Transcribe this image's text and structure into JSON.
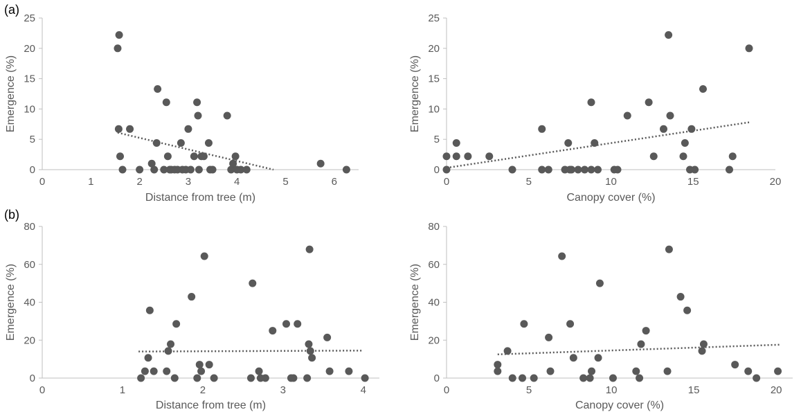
{
  "panel_labels": [
    "(a)",
    "(b)"
  ],
  "colors": {
    "points": "#595959",
    "trend": "#595959",
    "axis": "#bfbfbf",
    "text": "#595959"
  },
  "chart_data": [
    {
      "panel": "(a)",
      "type": "scatter",
      "xlabel": "Distance from tree (m)",
      "ylabel": "Emergence (%)",
      "xlim": [
        0,
        6.5
      ],
      "ylim": [
        0,
        25
      ],
      "xticks": [
        0,
        1,
        2,
        3,
        4,
        5,
        6
      ],
      "yticks": [
        0,
        5,
        10,
        15,
        20,
        25
      ],
      "grid": false,
      "trendline": {
        "style": "dotted",
        "x": [
          1.55,
          4.75
        ],
        "y": [
          6.1,
          0.0
        ]
      },
      "points": [
        [
          1.55,
          20.0
        ],
        [
          1.58,
          22.2
        ],
        [
          1.57,
          6.7
        ],
        [
          1.6,
          2.2
        ],
        [
          1.65,
          0.0
        ],
        [
          1.8,
          6.7
        ],
        [
          2.0,
          0.0
        ],
        [
          2.25,
          1.0
        ],
        [
          2.3,
          0.0
        ],
        [
          2.35,
          4.4
        ],
        [
          2.37,
          13.3
        ],
        [
          2.5,
          0.0
        ],
        [
          2.55,
          11.1
        ],
        [
          2.58,
          2.2
        ],
        [
          2.62,
          0.0
        ],
        [
          2.65,
          0.0
        ],
        [
          2.72,
          0.0
        ],
        [
          2.78,
          0.0
        ],
        [
          2.85,
          4.4
        ],
        [
          2.88,
          0.0
        ],
        [
          2.95,
          0.0
        ],
        [
          3.0,
          6.7
        ],
        [
          3.05,
          0.0
        ],
        [
          3.12,
          2.2
        ],
        [
          3.18,
          11.1
        ],
        [
          3.2,
          8.9
        ],
        [
          3.22,
          0.0
        ],
        [
          3.27,
          2.2
        ],
        [
          3.32,
          2.2
        ],
        [
          3.42,
          4.4
        ],
        [
          3.45,
          0.0
        ],
        [
          3.5,
          0.0
        ],
        [
          3.8,
          8.9
        ],
        [
          3.88,
          0.0
        ],
        [
          3.92,
          1.0
        ],
        [
          3.97,
          2.2
        ],
        [
          4.0,
          0.0
        ],
        [
          4.08,
          0.0
        ],
        [
          4.2,
          0.0
        ],
        [
          5.72,
          1.0
        ],
        [
          6.25,
          0.0
        ]
      ]
    },
    {
      "panel": "(a)",
      "type": "scatter",
      "xlabel": "Canopy cover (%)",
      "ylabel": "Emergence (%)",
      "xlim": [
        0,
        20
      ],
      "ylim": [
        0,
        25
      ],
      "xticks": [
        0,
        5,
        10,
        15,
        20
      ],
      "yticks": [
        0,
        5,
        10,
        15,
        20,
        25
      ],
      "grid": false,
      "trendline": {
        "style": "dotted",
        "x": [
          0,
          18.4
        ],
        "y": [
          0.3,
          7.8
        ]
      },
      "points": [
        [
          0.0,
          0.0
        ],
        [
          0.0,
          2.2
        ],
        [
          0.6,
          2.2
        ],
        [
          0.6,
          4.4
        ],
        [
          1.3,
          2.2
        ],
        [
          2.6,
          2.2
        ],
        [
          4.0,
          0.0
        ],
        [
          5.8,
          6.7
        ],
        [
          5.8,
          0.0
        ],
        [
          6.2,
          0.0
        ],
        [
          7.2,
          0.0
        ],
        [
          7.4,
          4.4
        ],
        [
          7.5,
          0.0
        ],
        [
          7.6,
          0.0
        ],
        [
          8.0,
          0.0
        ],
        [
          8.4,
          0.0
        ],
        [
          8.8,
          11.1
        ],
        [
          8.8,
          0.0
        ],
        [
          9.0,
          4.4
        ],
        [
          9.2,
          0.0
        ],
        [
          10.2,
          0.0
        ],
        [
          10.4,
          0.0
        ],
        [
          11.0,
          8.9
        ],
        [
          12.3,
          11.1
        ],
        [
          12.6,
          2.2
        ],
        [
          13.2,
          6.7
        ],
        [
          13.5,
          22.2
        ],
        [
          13.6,
          8.9
        ],
        [
          14.4,
          2.2
        ],
        [
          14.5,
          4.4
        ],
        [
          14.8,
          0.0
        ],
        [
          14.9,
          6.7
        ],
        [
          15.1,
          0.0
        ],
        [
          15.6,
          13.3
        ],
        [
          17.2,
          0.0
        ],
        [
          17.4,
          2.2
        ],
        [
          18.4,
          20.0
        ]
      ]
    },
    {
      "panel": "(b)",
      "type": "scatter",
      "xlabel": "Distance from tree (m)",
      "ylabel": "Emergence (%)",
      "xlim": [
        0,
        4.2
      ],
      "ylim": [
        0,
        80
      ],
      "xticks": [
        0,
        1,
        2,
        3,
        4
      ],
      "yticks": [
        0,
        20,
        40,
        60,
        80
      ],
      "grid": false,
      "trendline": {
        "style": "dotted",
        "x": [
          1.2,
          4.0
        ],
        "y": [
          14.0,
          14.5
        ]
      },
      "points": [
        [
          1.23,
          0.0
        ],
        [
          1.28,
          3.6
        ],
        [
          1.32,
          10.7
        ],
        [
          1.34,
          35.7
        ],
        [
          1.39,
          3.6
        ],
        [
          1.55,
          3.6
        ],
        [
          1.57,
          14.3
        ],
        [
          1.6,
          17.9
        ],
        [
          1.65,
          0.0
        ],
        [
          1.67,
          28.6
        ],
        [
          1.86,
          42.9
        ],
        [
          1.93,
          0.0
        ],
        [
          1.96,
          7.1
        ],
        [
          1.98,
          3.6
        ],
        [
          2.02,
          64.3
        ],
        [
          2.08,
          7.1
        ],
        [
          2.14,
          0.0
        ],
        [
          2.6,
          0.0
        ],
        [
          2.62,
          50.0
        ],
        [
          2.7,
          3.6
        ],
        [
          2.72,
          0.0
        ],
        [
          2.78,
          0.0
        ],
        [
          2.87,
          25.0
        ],
        [
          3.04,
          28.6
        ],
        [
          3.1,
          0.0
        ],
        [
          3.13,
          0.0
        ],
        [
          3.18,
          28.6
        ],
        [
          3.3,
          0.0
        ],
        [
          3.32,
          17.9
        ],
        [
          3.33,
          67.9
        ],
        [
          3.34,
          14.3
        ],
        [
          3.36,
          10.7
        ],
        [
          3.55,
          21.4
        ],
        [
          3.58,
          3.6
        ],
        [
          3.82,
          3.6
        ],
        [
          4.02,
          0.0
        ]
      ]
    },
    {
      "panel": "(b)",
      "type": "scatter",
      "xlabel": "Canopy cover (%)",
      "ylabel": "Emergence (%)",
      "xlim": [
        0,
        21
      ],
      "ylim": [
        0,
        80
      ],
      "xticks": [
        0,
        5,
        10,
        15,
        20
      ],
      "yticks": [
        0,
        20,
        40,
        60,
        80
      ],
      "grid": false,
      "trendline": {
        "style": "dotted",
        "x": [
          3.1,
          20.2
        ],
        "y": [
          12.5,
          17.6
        ]
      },
      "points": [
        [
          3.1,
          3.6
        ],
        [
          3.1,
          7.1
        ],
        [
          3.7,
          14.3
        ],
        [
          4.0,
          0.0
        ],
        [
          4.6,
          0.0
        ],
        [
          4.7,
          28.6
        ],
        [
          5.3,
          0.0
        ],
        [
          6.2,
          21.4
        ],
        [
          6.3,
          3.6
        ],
        [
          7.0,
          64.3
        ],
        [
          7.5,
          28.6
        ],
        [
          7.7,
          10.7
        ],
        [
          8.3,
          0.0
        ],
        [
          8.7,
          0.0
        ],
        [
          8.8,
          3.6
        ],
        [
          9.2,
          10.7
        ],
        [
          9.3,
          50.0
        ],
        [
          10.1,
          0.0
        ],
        [
          11.5,
          3.6
        ],
        [
          11.7,
          0.0
        ],
        [
          11.8,
          17.9
        ],
        [
          12.1,
          25.0
        ],
        [
          13.4,
          3.6
        ],
        [
          13.5,
          67.9
        ],
        [
          14.2,
          42.9
        ],
        [
          14.6,
          35.7
        ],
        [
          15.5,
          14.3
        ],
        [
          15.6,
          17.9
        ],
        [
          17.5,
          7.1
        ],
        [
          18.3,
          3.6
        ],
        [
          18.8,
          0.0
        ],
        [
          20.1,
          3.6
        ]
      ]
    }
  ]
}
